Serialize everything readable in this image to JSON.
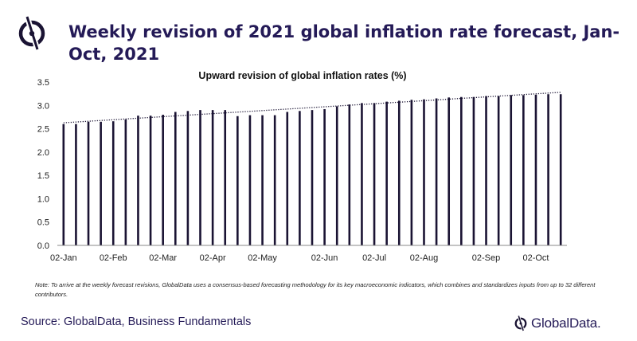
{
  "header": {
    "title": "Weekly revision of 2021 global inflation rate forecast, Jan-Oct, 2021",
    "logo_icon": "globaldata-logo-icon"
  },
  "colors": {
    "bar": "#1a1333",
    "trendline": "#1a1333",
    "title": "#241a57"
  },
  "chart_data": {
    "type": "bar",
    "title": "Upward revision of global inflation rates (%)",
    "xlabel": "",
    "ylabel": "",
    "ylim": [
      0,
      3.5
    ],
    "yticks": [
      "0.0",
      "0.5",
      "1.0",
      "1.5",
      "2.0",
      "2.5",
      "3.0",
      "3.5"
    ],
    "grid": false,
    "legend": "none",
    "trendline": {
      "style": "dotted",
      "type": "linear"
    },
    "x_tick_labels": [
      {
        "label": "02-Jan",
        "index": 0
      },
      {
        "label": "02-Feb",
        "index": 4
      },
      {
        "label": "02-Mar",
        "index": 8
      },
      {
        "label": "02-Apr",
        "index": 12
      },
      {
        "label": "02-May",
        "index": 16
      },
      {
        "label": "02-Jun",
        "index": 21
      },
      {
        "label": "02-Jul",
        "index": 25
      },
      {
        "label": "02-Aug",
        "index": 29
      },
      {
        "label": "02-Sep",
        "index": 34
      },
      {
        "label": "02-Oct",
        "index": 38
      }
    ],
    "values": [
      2.6,
      2.6,
      2.65,
      2.65,
      2.66,
      2.7,
      2.78,
      2.78,
      2.8,
      2.86,
      2.88,
      2.9,
      2.9,
      2.9,
      2.77,
      2.79,
      2.79,
      2.79,
      2.86,
      2.88,
      2.9,
      2.92,
      2.98,
      3.02,
      3.05,
      3.05,
      3.08,
      3.1,
      3.12,
      3.13,
      3.15,
      3.17,
      3.18,
      3.18,
      3.2,
      3.2,
      3.22,
      3.22,
      3.23,
      3.24,
      3.24
    ]
  },
  "footer": {
    "note": "Note: To arrive at the weekly forecast revisions, GlobalData uses a consensus-based forecasting methodology for its key macroeconomic indicators, which combines and standardizes inputs from up to 32 different contributors.",
    "source": "Source: GlobalData, Business Fundamentals",
    "brand_name": "GlobalData."
  }
}
